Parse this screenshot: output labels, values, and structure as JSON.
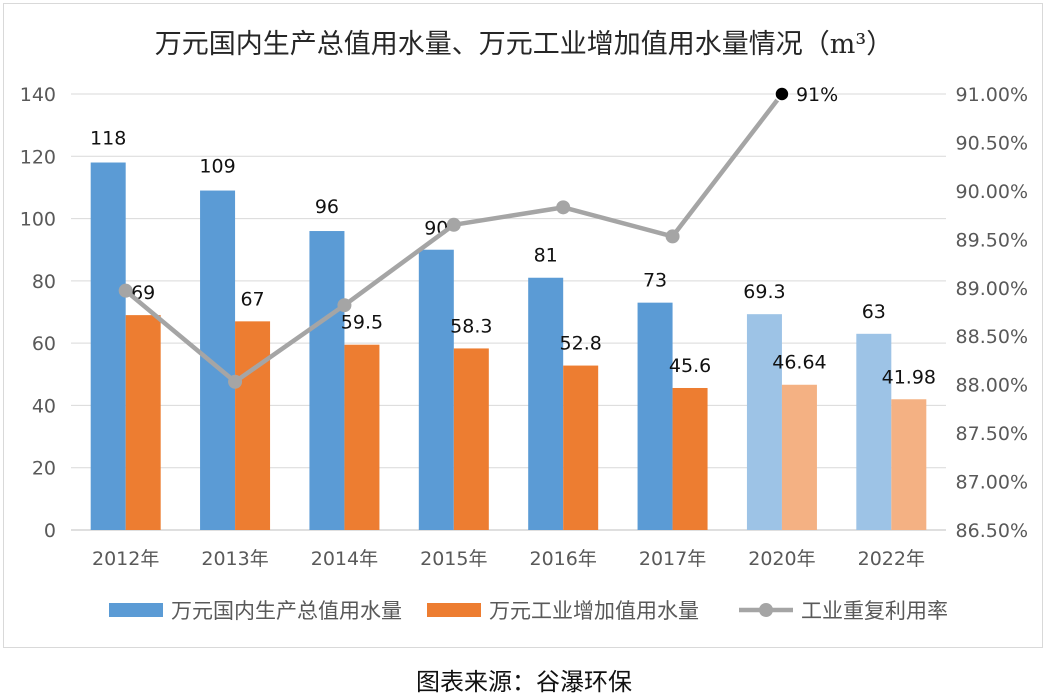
{
  "chart_data": {
    "type": "bar",
    "title": "万元国内生产总值用水量、万元工业增加值用水量情况（m³）",
    "categories": [
      "2012年",
      "2013年",
      "2014年",
      "2015年",
      "2016年",
      "2017年",
      "2020年",
      "2022年"
    ],
    "series": [
      {
        "name": "万元国内生产总值用水量",
        "type": "bar",
        "axis": "left",
        "color": "#5b9bd5",
        "projected_color": "#9dc3e6",
        "values": [
          118,
          109,
          96,
          90,
          81,
          73,
          69.3,
          63
        ],
        "labels": [
          "118",
          "109",
          "96",
          "90",
          "81",
          "73",
          "69.3",
          "63"
        ]
      },
      {
        "name": "万元工业增加值用水量",
        "type": "bar",
        "axis": "left",
        "color": "#ed7d31",
        "projected_color": "#f4b183",
        "values": [
          69,
          67,
          59.5,
          58.3,
          52.8,
          45.6,
          46.64,
          41.98
        ],
        "labels": [
          "69",
          "67",
          "59.5",
          "58.3",
          "52.8",
          "45.6",
          "46.64",
          "41.98"
        ]
      },
      {
        "name": "工业重复利用率",
        "type": "line",
        "axis": "right",
        "color": "#a5a5a5",
        "values": [
          88.97,
          88.03,
          88.82,
          89.65,
          89.83,
          89.53,
          91.0,
          null
        ],
        "point_labels": [
          "",
          "",
          "",
          "",
          "",
          "",
          "91%",
          ""
        ]
      }
    ],
    "projected_categories": [
      "2020年",
      "2022年"
    ],
    "y_left": {
      "min": 0,
      "max": 140,
      "ticks": [
        "0",
        "20",
        "40",
        "60",
        "80",
        "100",
        "120",
        "140"
      ]
    },
    "y_right": {
      "min": 86.5,
      "max": 91.0,
      "ticks": [
        "86.50%",
        "87.00%",
        "87.50%",
        "88.00%",
        "88.50%",
        "89.00%",
        "89.50%",
        "90.00%",
        "90.50%",
        "91.00%"
      ]
    },
    "grid": true,
    "legend_position": "bottom"
  },
  "source": "图表来源：谷瀑环保"
}
